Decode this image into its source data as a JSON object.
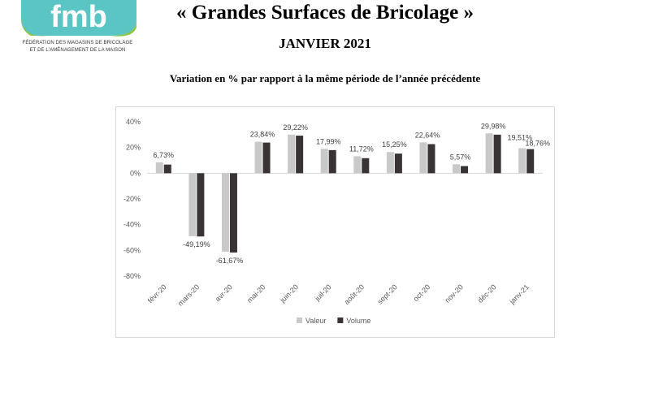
{
  "header": {
    "logo_text": "fmb",
    "logo_caption_line1": "FÉDÉRATION DES MAGASINS DE BRICOLAGE",
    "logo_caption_line2": "ET DE L'AMÉNAGEMENT DE LA MAISON",
    "title": "« Grandes Surfaces de Bricolage »",
    "period": "JANVIER 2021",
    "subtitle": "Variation en % par rapport à la même période de l’année précédente"
  },
  "colors": {
    "valeur": "#c9c9c9",
    "volume": "#3a3334",
    "logo_teal": "#5bc5c5",
    "logo_green": "#8cc63f"
  },
  "chart_data": {
    "type": "bar",
    "categories": [
      "févr-20",
      "mars-20",
      "avr-20",
      "mai-20",
      "juin-20",
      "juil-20",
      "août-20",
      "sept-20",
      "oct-20",
      "nov-20",
      "déc-20",
      "janv-21"
    ],
    "series": [
      {
        "name": "Valeur",
        "values": [
          8.5,
          -49.0,
          -61.0,
          24.5,
          30.0,
          19.0,
          13.2,
          16.5,
          24.0,
          7.0,
          31.0,
          19.51
        ]
      },
      {
        "name": "Volume",
        "values": [
          6.73,
          -49.19,
          -61.67,
          23.84,
          29.22,
          17.99,
          11.72,
          15.25,
          22.64,
          5.57,
          29.98,
          18.76
        ]
      }
    ],
    "data_labels": [
      "6,73%",
      "-49,19%",
      "-61,67%",
      "23,84%",
      "29,22%",
      "17,99%",
      "11,72%",
      "15,25%",
      "22,64%",
      "5,57%",
      "29,98%",
      "19,51%",
      "18,76%"
    ],
    "yticks": [
      "40%",
      "20%",
      "0%",
      "-20%",
      "-40%",
      "-60%",
      "-80%"
    ],
    "ylim": [
      -80,
      40
    ],
    "legend_placement": "bottom-center",
    "grid": false
  }
}
